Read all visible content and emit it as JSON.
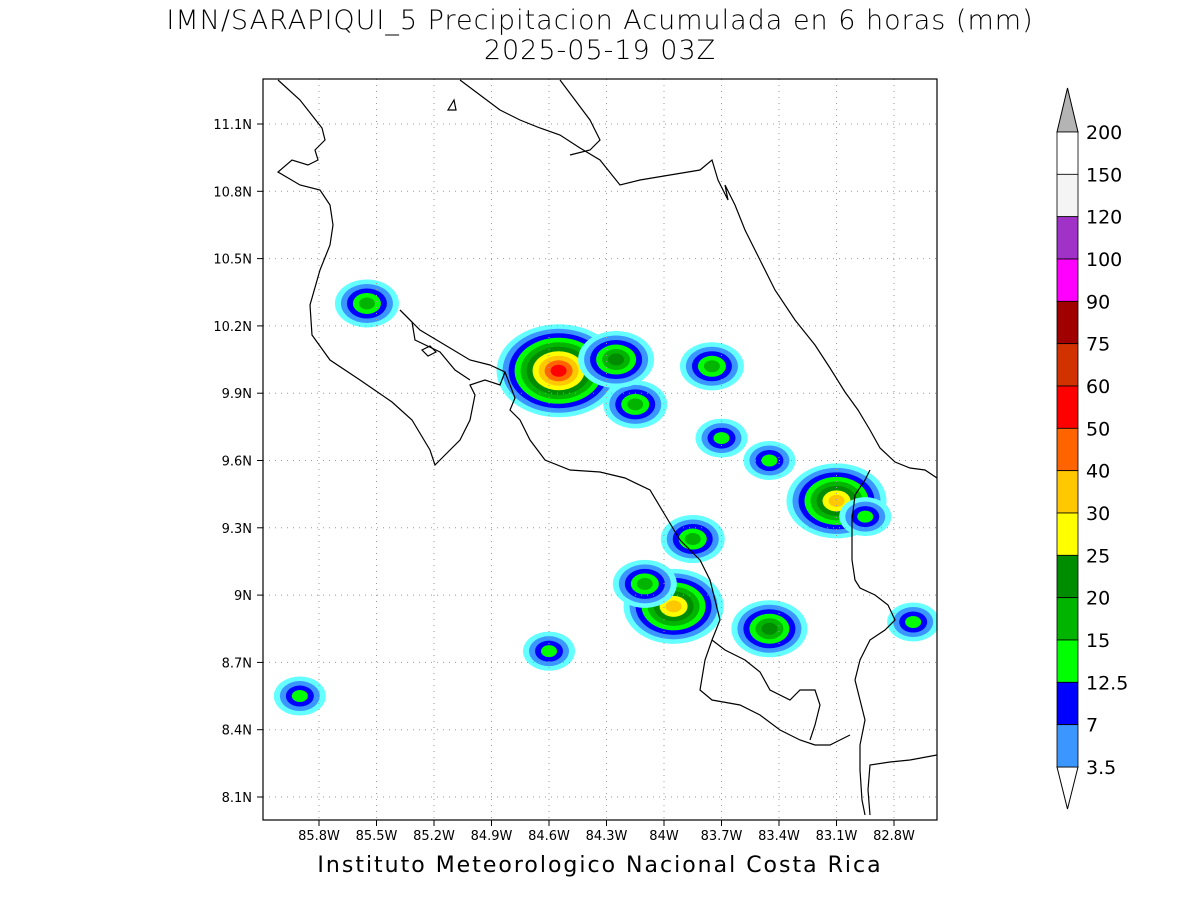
{
  "title": "IMN/SARAPIQUI_5 Precipitacion Acumulada en 6 horas (mm)",
  "subtitle": "2025-05-19 03Z",
  "footer": "Instituto Meteorologico Nacional Costa Rica",
  "map": {
    "lon_ticks": [
      "85.8W",
      "85.5W",
      "85.2W",
      "84.9W",
      "84.6W",
      "84.3W",
      "84W",
      "83.7W",
      "83.4W",
      "83.1W",
      "82.8W"
    ],
    "lat_ticks": [
      "11.1N",
      "10.8N",
      "10.5N",
      "10.2N",
      "9.9N",
      "9.6N",
      "9.3N",
      "9N",
      "8.7N",
      "8.4N",
      "8.1N"
    ],
    "grid": "dotted",
    "colorbar": {
      "labels": [
        "200",
        "150",
        "120",
        "100",
        "90",
        "75",
        "60",
        "50",
        "40",
        "30",
        "25",
        "20",
        "15",
        "12.5",
        "7",
        "3.5"
      ],
      "colors": [
        "#ffffff",
        "#f4f4f4",
        "#a032c8",
        "#ff00ff",
        "#a00000",
        "#d23200",
        "#ff0000",
        "#ff6400",
        "#ffc800",
        "#ffff00",
        "#008c00",
        "#00b400",
        "#00ff00",
        "#0000ff",
        "#3c96ff",
        "#64ffff"
      ],
      "overflow_color": "#b4b4b4"
    },
    "precip_cells": [
      {
        "lon": -84.55,
        "lat": 10.0,
        "level": 9
      },
      {
        "lon": -83.95,
        "lat": 8.95,
        "level": 7
      },
      {
        "lon": -83.1,
        "lat": 9.42,
        "level": 7
      },
      {
        "lon": -85.55,
        "lat": 10.3,
        "level": 4
      },
      {
        "lon": -83.85,
        "lat": 9.25,
        "level": 4
      },
      {
        "lon": -83.45,
        "lat": 8.85,
        "level": 5
      },
      {
        "lon": -84.15,
        "lat": 9.85,
        "level": 4
      },
      {
        "lon": -83.75,
        "lat": 10.02,
        "level": 4
      },
      {
        "lon": -83.7,
        "lat": 9.7,
        "level": 3
      },
      {
        "lon": -83.45,
        "lat": 9.6,
        "level": 3
      },
      {
        "lon": -84.1,
        "lat": 9.05,
        "level": 4
      },
      {
        "lon": -84.6,
        "lat": 8.75,
        "level": 3
      },
      {
        "lon": -85.9,
        "lat": 8.55,
        "level": 3
      },
      {
        "lon": -84.25,
        "lat": 10.05,
        "level": 5
      },
      {
        "lon": -82.95,
        "lat": 9.35,
        "level": 3
      },
      {
        "lon": -82.7,
        "lat": 8.88,
        "level": 3
      }
    ]
  }
}
